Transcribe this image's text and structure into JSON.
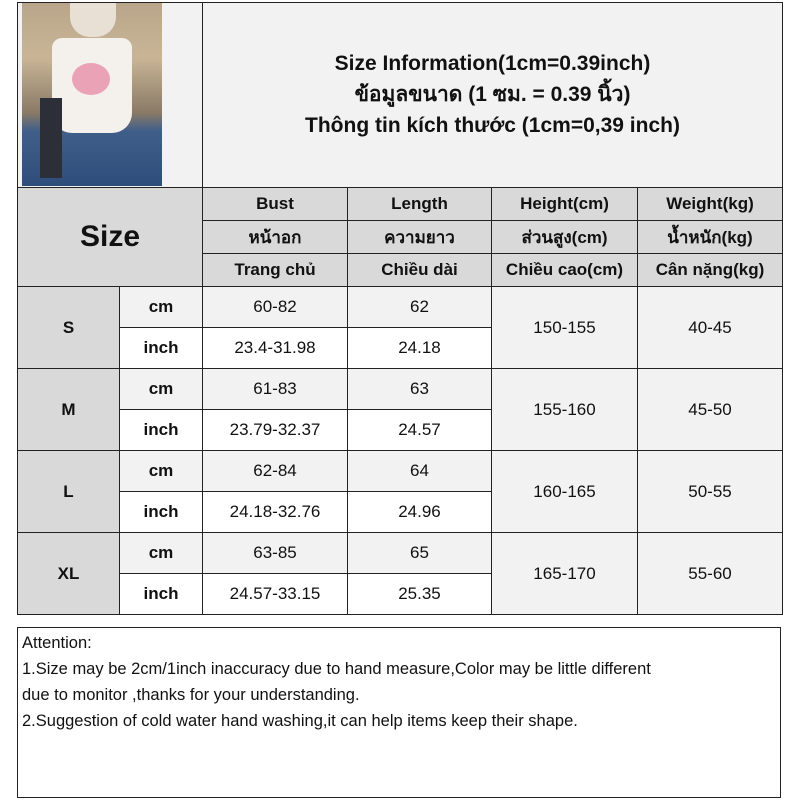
{
  "title_lines": [
    "Size Information(1cm=0.39inch)",
    "ข้อมูลขนาด (1 ซม. = 0.39 นิ้ว)",
    "Thông tin kích thước (1cm=0,39 inch)"
  ],
  "header": {
    "size_label": "Size",
    "columns": [
      {
        "en": "Bust",
        "th": "หน้าอก",
        "vi": "Trang chủ"
      },
      {
        "en": "Length",
        "th": "ความยาว",
        "vi": "Chiều dài"
      },
      {
        "en": "Height(cm)",
        "th": "ส่วนสูง(cm)",
        "vi": "Chiều cao(cm)"
      },
      {
        "en": "Weight(kg)",
        "th": "น้ำหนัก(kg)",
        "vi": "Cân nặng(kg)"
      }
    ]
  },
  "units": {
    "cm": "cm",
    "inch": "inch"
  },
  "rows": [
    {
      "size": "S",
      "bust_cm": "60-82",
      "length_cm": "62",
      "bust_in": "23.4-31.98",
      "length_in": "24.18",
      "height": "150-155",
      "weight": "40-45"
    },
    {
      "size": "M",
      "bust_cm": "61-83",
      "length_cm": "63",
      "bust_in": "23.79-32.37",
      "length_in": "24.57",
      "height": "155-160",
      "weight": "45-50"
    },
    {
      "size": "L",
      "bust_cm": "62-84",
      "length_cm": "64",
      "bust_in": "24.18-32.76",
      "length_in": "24.96",
      "height": "160-165",
      "weight": "50-55"
    },
    {
      "size": "XL",
      "bust_cm": "63-85",
      "length_cm": "65",
      "bust_in": "24.57-33.15",
      "length_in": "25.35",
      "height": "165-170",
      "weight": "55-60"
    }
  ],
  "notes": [
    "Attention:",
    "1.Size may be 2cm/1inch inaccuracy due to hand measure,Color may be little different",
    "due to monitor ,thanks for your understanding.",
    "2.Suggestion of cold water hand washing,it can help items keep their shape."
  ],
  "colors": {
    "header_bg": "#d9d9d9",
    "light_bg": "#f2f2f2",
    "border": "#222222"
  }
}
